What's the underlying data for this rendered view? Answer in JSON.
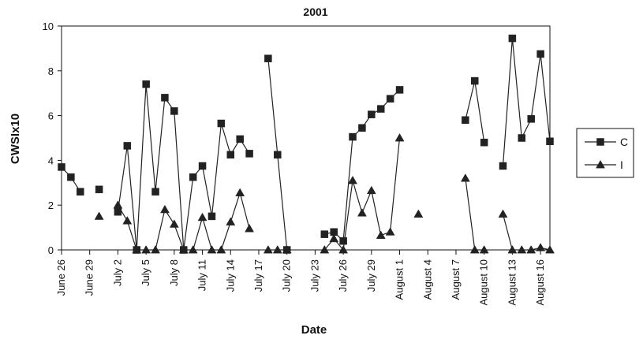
{
  "chart_data": {
    "type": "line",
    "title": "2001",
    "xlabel": "Date",
    "ylabel": "CWSIx10",
    "ylim": [
      0,
      10
    ],
    "yticks": [
      0,
      2,
      4,
      6,
      8,
      10
    ],
    "xlim": [
      "2001-06-26",
      "2001-08-17"
    ],
    "x_tick_labels": [
      {
        "label": "June 26",
        "date": "2001-06-26"
      },
      {
        "label": "June 29",
        "date": "2001-06-29"
      },
      {
        "label": "July 2",
        "date": "2001-07-02"
      },
      {
        "label": "July 5",
        "date": "2001-07-05"
      },
      {
        "label": "July 8",
        "date": "2001-07-08"
      },
      {
        "label": "July 11",
        "date": "2001-07-11"
      },
      {
        "label": "July 14",
        "date": "2001-07-14"
      },
      {
        "label": "July 17",
        "date": "2001-07-17"
      },
      {
        "label": "July 20",
        "date": "2001-07-20"
      },
      {
        "label": "July 23",
        "date": "2001-07-23"
      },
      {
        "label": "July 26",
        "date": "2001-07-26"
      },
      {
        "label": "July 29",
        "date": "2001-07-29"
      },
      {
        "label": "August 1",
        "date": "2001-08-01"
      },
      {
        "label": "August 4",
        "date": "2001-08-04"
      },
      {
        "label": "August 7",
        "date": "2001-08-07"
      },
      {
        "label": "August 10",
        "date": "2001-08-10"
      },
      {
        "label": "August 13",
        "date": "2001-08-13"
      },
      {
        "label": "August 16",
        "date": "2001-08-16"
      }
    ],
    "grid": false,
    "legend_position": "right",
    "series": [
      {
        "name": "C",
        "marker": "square",
        "color": "#222222",
        "segments": [
          [
            {
              "x": "2001-06-26",
              "y": 3.7
            },
            {
              "x": "2001-06-27",
              "y": 3.25
            },
            {
              "x": "2001-06-28",
              "y": 2.6
            }
          ],
          [
            {
              "x": "2001-06-30",
              "y": 2.7
            }
          ],
          [
            {
              "x": "2001-07-02",
              "y": 1.7
            },
            {
              "x": "2001-07-03",
              "y": 4.65
            },
            {
              "x": "2001-07-04",
              "y": 0.0
            },
            {
              "x": "2001-07-05",
              "y": 7.4
            },
            {
              "x": "2001-07-06",
              "y": 2.6
            },
            {
              "x": "2001-07-07",
              "y": 6.8
            },
            {
              "x": "2001-07-08",
              "y": 6.2
            },
            {
              "x": "2001-07-09",
              "y": 0.0
            },
            {
              "x": "2001-07-10",
              "y": 3.25
            },
            {
              "x": "2001-07-11",
              "y": 3.75
            },
            {
              "x": "2001-07-12",
              "y": 1.5
            },
            {
              "x": "2001-07-13",
              "y": 5.65
            },
            {
              "x": "2001-07-14",
              "y": 4.25
            },
            {
              "x": "2001-07-15",
              "y": 4.95
            },
            {
              "x": "2001-07-16",
              "y": 4.3
            }
          ],
          [
            {
              "x": "2001-07-18",
              "y": 8.55
            },
            {
              "x": "2001-07-19",
              "y": 4.25
            },
            {
              "x": "2001-07-20",
              "y": 0.0
            }
          ],
          [
            {
              "x": "2001-07-24",
              "y": 0.7
            },
            {
              "x": "2001-07-25",
              "y": 0.8
            },
            {
              "x": "2001-07-26",
              "y": 0.4
            },
            {
              "x": "2001-07-27",
              "y": 5.05
            },
            {
              "x": "2001-07-28",
              "y": 5.45
            },
            {
              "x": "2001-07-29",
              "y": 6.05
            },
            {
              "x": "2001-07-30",
              "y": 6.3
            },
            {
              "x": "2001-07-31",
              "y": 6.75
            },
            {
              "x": "2001-08-01",
              "y": 7.15
            }
          ],
          [
            {
              "x": "2001-08-08",
              "y": 5.8
            },
            {
              "x": "2001-08-09",
              "y": 7.55
            },
            {
              "x": "2001-08-10",
              "y": 4.8
            }
          ],
          [
            {
              "x": "2001-08-12",
              "y": 3.75
            },
            {
              "x": "2001-08-13",
              "y": 9.45
            },
            {
              "x": "2001-08-14",
              "y": 5.0
            },
            {
              "x": "2001-08-15",
              "y": 5.85
            },
            {
              "x": "2001-08-16",
              "y": 8.75
            },
            {
              "x": "2001-08-17",
              "y": 4.85
            }
          ]
        ]
      },
      {
        "name": "I",
        "marker": "triangle",
        "color": "#222222",
        "segments": [
          [
            {
              "x": "2001-06-30",
              "y": 1.5
            }
          ],
          [
            {
              "x": "2001-07-02",
              "y": 2.0
            },
            {
              "x": "2001-07-03",
              "y": 1.3
            },
            {
              "x": "2001-07-04",
              "y": 0.0
            },
            {
              "x": "2001-07-05",
              "y": 0.0
            },
            {
              "x": "2001-07-06",
              "y": 0.0
            },
            {
              "x": "2001-07-07",
              "y": 1.8
            },
            {
              "x": "2001-07-08",
              "y": 1.15
            },
            {
              "x": "2001-07-09",
              "y": 0.0
            },
            {
              "x": "2001-07-10",
              "y": 0.0
            },
            {
              "x": "2001-07-11",
              "y": 1.45
            },
            {
              "x": "2001-07-12",
              "y": 0.0
            },
            {
              "x": "2001-07-13",
              "y": 0.0
            },
            {
              "x": "2001-07-14",
              "y": 1.25
            },
            {
              "x": "2001-07-15",
              "y": 2.55
            },
            {
              "x": "2001-07-16",
              "y": 0.95
            }
          ],
          [
            {
              "x": "2001-07-18",
              "y": 0.0
            },
            {
              "x": "2001-07-19",
              "y": 0.0
            },
            {
              "x": "2001-07-20",
              "y": 0.0
            }
          ],
          [
            {
              "x": "2001-07-24",
              "y": 0.0
            },
            {
              "x": "2001-07-25",
              "y": 0.5
            },
            {
              "x": "2001-07-26",
              "y": 0.0
            },
            {
              "x": "2001-07-27",
              "y": 3.1
            },
            {
              "x": "2001-07-28",
              "y": 1.65
            },
            {
              "x": "2001-07-29",
              "y": 2.65
            },
            {
              "x": "2001-07-30",
              "y": 0.65
            },
            {
              "x": "2001-07-31",
              "y": 0.8
            },
            {
              "x": "2001-08-01",
              "y": 5.0
            }
          ],
          [
            {
              "x": "2001-08-03",
              "y": 1.6
            }
          ],
          [
            {
              "x": "2001-08-08",
              "y": 3.2
            },
            {
              "x": "2001-08-09",
              "y": 0.0
            },
            {
              "x": "2001-08-10",
              "y": 0.0
            }
          ],
          [
            {
              "x": "2001-08-12",
              "y": 1.6
            },
            {
              "x": "2001-08-13",
              "y": 0.0
            },
            {
              "x": "2001-08-14",
              "y": 0.0
            },
            {
              "x": "2001-08-15",
              "y": 0.0
            },
            {
              "x": "2001-08-16",
              "y": 0.1
            },
            {
              "x": "2001-08-17",
              "y": 0.0
            }
          ]
        ]
      }
    ]
  }
}
